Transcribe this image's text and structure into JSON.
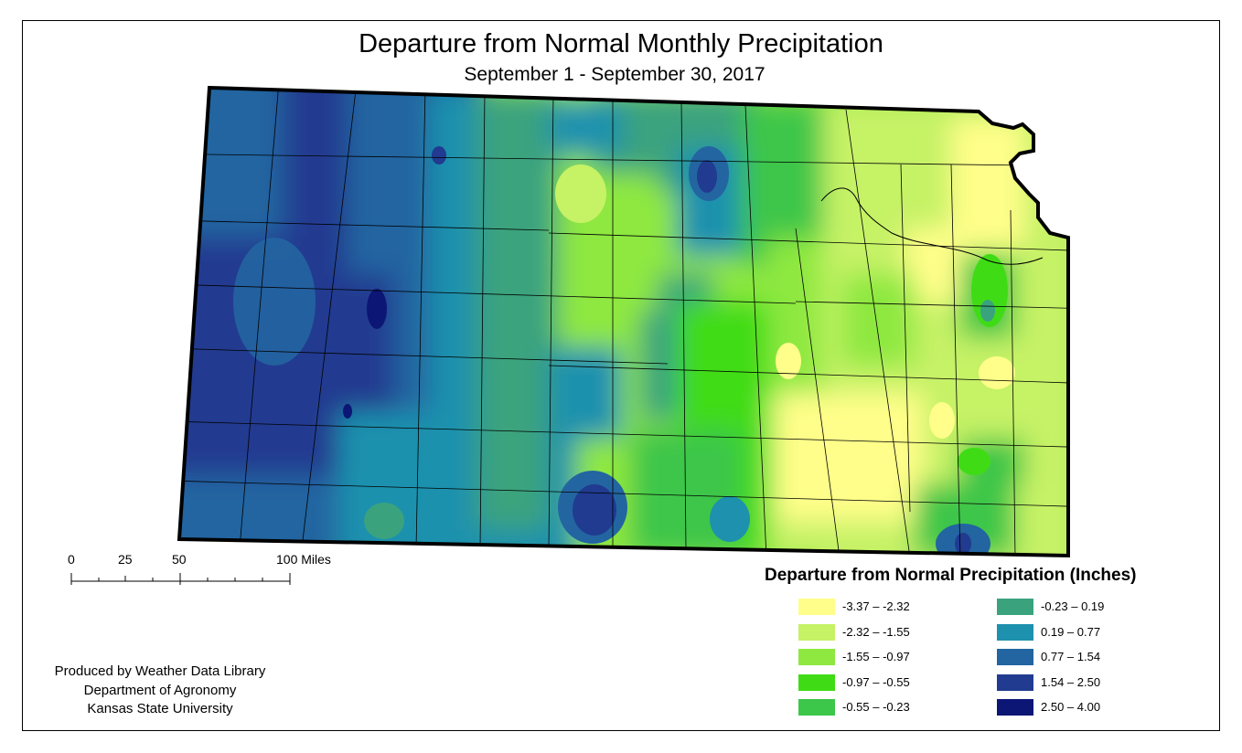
{
  "map": {
    "title": "Departure from Normal Monthly Precipitation",
    "subtitle": "September 1 - September 30, 2017",
    "region": "Kansas"
  },
  "legend": {
    "title": "Departure from Normal Precipitation (Inches)",
    "classes": [
      {
        "label": "-3.37 – -2.32",
        "color": "#fffe8a"
      },
      {
        "label": "-2.32 – -1.55",
        "color": "#c6f266"
      },
      {
        "label": "-1.55 – -0.97",
        "color": "#8ee840"
      },
      {
        "label": "-0.97 – -0.55",
        "color": "#3fdc16"
      },
      {
        "label": "-0.55 – -0.23",
        "color": "#3cc64a"
      },
      {
        "label": "-0.23 – 0.19",
        "color": "#3aa37e"
      },
      {
        "label": "0.19 – 0.77",
        "color": "#1d91ae"
      },
      {
        "label": "0.77 – 1.54",
        "color": "#2365a1"
      },
      {
        "label": "1.54 – 2.50",
        "color": "#203b90"
      },
      {
        "label": "2.50 – 4.00",
        "color": "#0c1675"
      }
    ]
  },
  "scalebar": {
    "ticks": [
      "0",
      "25",
      "50",
      "100 Miles"
    ]
  },
  "credits": {
    "line1": "Produced by Weather Data Library",
    "line2": "Department of Agronomy",
    "line3": "Kansas State University"
  }
}
